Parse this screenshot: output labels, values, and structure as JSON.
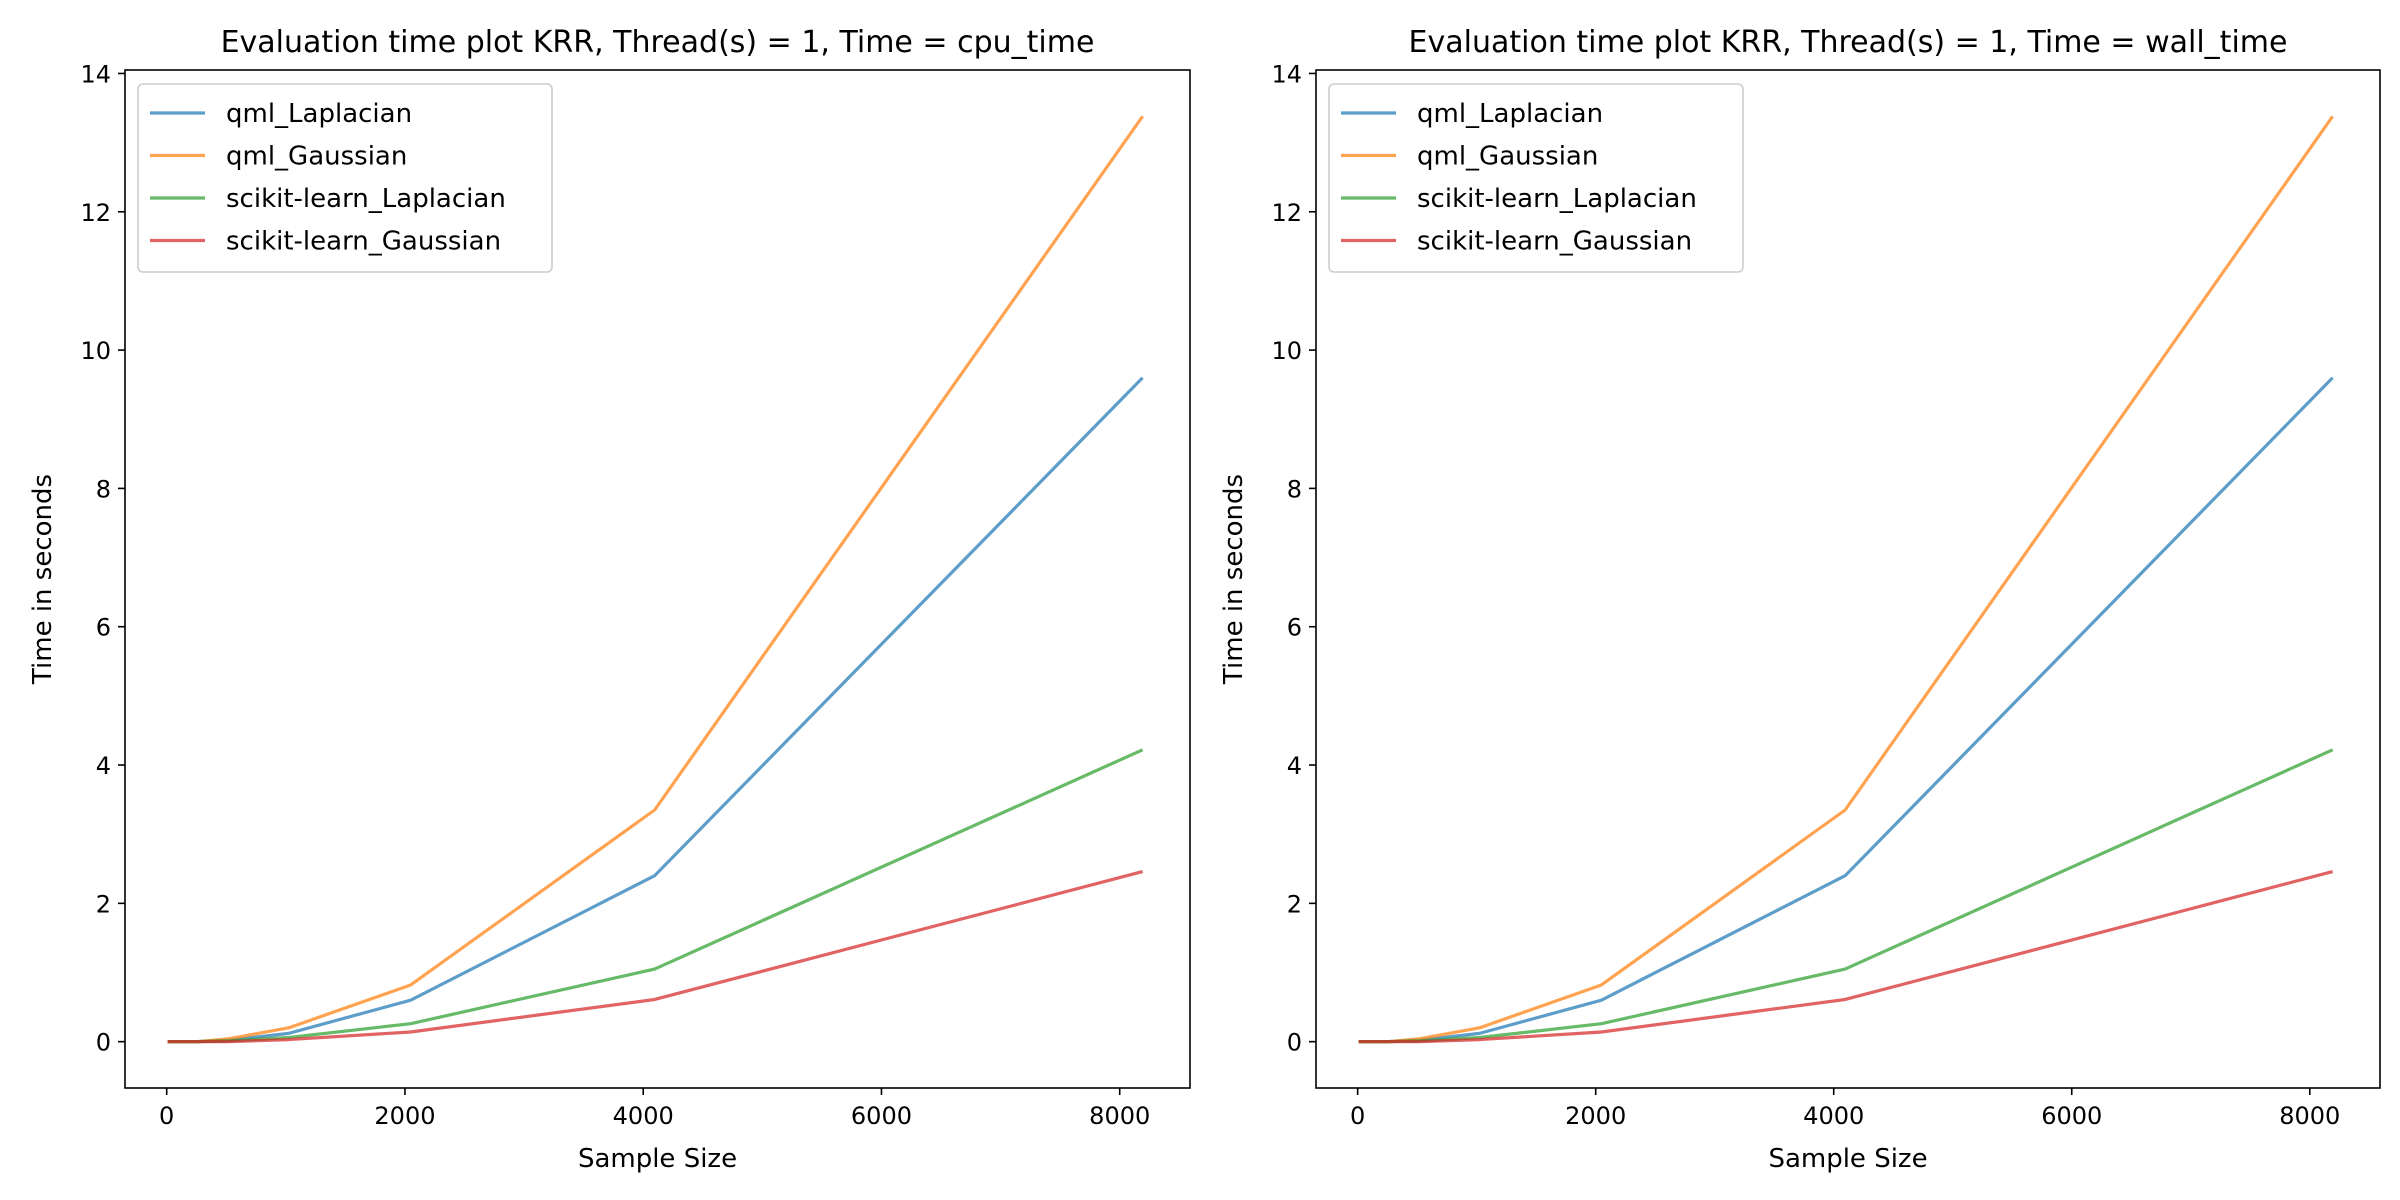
{
  "chart_data": [
    {
      "type": "line",
      "title": "Evaluation time plot KRR, Thread(s) = 1, Time = cpu_time",
      "xlabel": "Sample Size",
      "ylabel": "Time in seconds",
      "xlim": [
        -350,
        8590
      ],
      "ylim": [
        -0.67,
        14.05
      ],
      "xticks": [
        0,
        2000,
        4000,
        6000,
        8000
      ],
      "xtick_labels": [
        "0",
        "2000",
        "4000",
        "6000",
        "8000"
      ],
      "yticks": [
        0,
        2,
        4,
        6,
        8,
        10,
        12,
        14
      ],
      "ytick_labels": [
        "0",
        "2",
        "4",
        "6",
        "8",
        "10",
        "12",
        "14"
      ],
      "grid": false,
      "legend_position": "upper-left",
      "x": [
        8,
        16,
        32,
        64,
        128,
        256,
        512,
        1024,
        2048,
        4096,
        8192
      ],
      "series": [
        {
          "name": "qml_Laplacian",
          "color": "#1f77b4",
          "values": [
            0.0,
            0.0,
            0.0,
            0.0,
            0.0,
            0.0,
            0.02,
            0.12,
            0.6,
            2.4,
            9.6
          ]
        },
        {
          "name": "qml_Gaussian",
          "color": "#ff7f0e",
          "values": [
            0.0,
            0.0,
            0.0,
            0.0,
            0.0,
            0.0,
            0.04,
            0.2,
            0.82,
            3.35,
            13.38
          ]
        },
        {
          "name": "scikit-learn_Laplacian",
          "color": "#2ca02c",
          "values": [
            0.0,
            0.0,
            0.0,
            0.0,
            0.0,
            0.0,
            0.01,
            0.06,
            0.26,
            1.05,
            4.22
          ]
        },
        {
          "name": "scikit-learn_Gaussian",
          "color": "#d62728",
          "values": [
            0.0,
            0.0,
            0.0,
            0.0,
            0.0,
            0.0,
            0.0,
            0.03,
            0.14,
            0.61,
            2.46
          ]
        }
      ]
    },
    {
      "type": "line",
      "title": "Evaluation time plot KRR, Thread(s) = 1, Time = wall_time",
      "xlabel": "Sample Size",
      "ylabel": "Time in seconds",
      "xlim": [
        -350,
        8590
      ],
      "ylim": [
        -0.67,
        14.05
      ],
      "xticks": [
        0,
        2000,
        4000,
        6000,
        8000
      ],
      "xtick_labels": [
        "0",
        "2000",
        "4000",
        "6000",
        "8000"
      ],
      "yticks": [
        0,
        2,
        4,
        6,
        8,
        10,
        12,
        14
      ],
      "ytick_labels": [
        "0",
        "2",
        "4",
        "6",
        "8",
        "10",
        "12",
        "14"
      ],
      "grid": false,
      "legend_position": "upper-left",
      "x": [
        8,
        16,
        32,
        64,
        128,
        256,
        512,
        1024,
        2048,
        4096,
        8192
      ],
      "series": [
        {
          "name": "qml_Laplacian",
          "color": "#1f77b4",
          "values": [
            0.0,
            0.0,
            0.0,
            0.0,
            0.0,
            0.0,
            0.02,
            0.12,
            0.6,
            2.4,
            9.6
          ]
        },
        {
          "name": "qml_Gaussian",
          "color": "#ff7f0e",
          "values": [
            0.0,
            0.0,
            0.0,
            0.0,
            0.0,
            0.0,
            0.04,
            0.2,
            0.82,
            3.35,
            13.38
          ]
        },
        {
          "name": "scikit-learn_Laplacian",
          "color": "#2ca02c",
          "values": [
            0.0,
            0.0,
            0.0,
            0.0,
            0.0,
            0.0,
            0.01,
            0.06,
            0.26,
            1.05,
            4.22
          ]
        },
        {
          "name": "scikit-learn_Gaussian",
          "color": "#d62728",
          "values": [
            0.0,
            0.0,
            0.0,
            0.0,
            0.0,
            0.0,
            0.0,
            0.03,
            0.14,
            0.61,
            2.46
          ]
        }
      ]
    }
  ]
}
